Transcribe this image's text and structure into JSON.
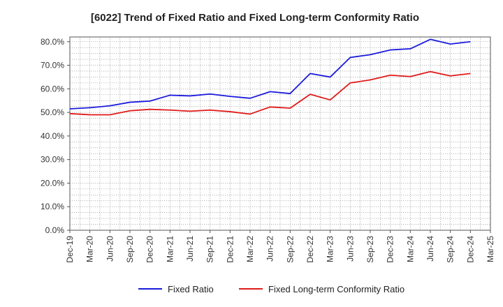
{
  "chart_data": {
    "type": "line",
    "title": "[6022]  Trend of Fixed Ratio and Fixed Long-term Conformity Ratio",
    "xlabel": "",
    "ylabel": "",
    "ylim": [
      0,
      82
    ],
    "y_ticks": [
      "0.0%",
      "10.0%",
      "20.0%",
      "30.0%",
      "40.0%",
      "50.0%",
      "60.0%",
      "70.0%",
      "80.0%"
    ],
    "y_tick_values": [
      0,
      10,
      20,
      30,
      40,
      50,
      60,
      70,
      80
    ],
    "categories": [
      "Dec-19",
      "Mar-20",
      "Jun-20",
      "Sep-20",
      "Dec-20",
      "Mar-21",
      "Jun-21",
      "Sep-21",
      "Dec-21",
      "Mar-22",
      "Jun-22",
      "Sep-22",
      "Dec-22",
      "Mar-23",
      "Jun-23",
      "Sep-23",
      "Dec-23",
      "Mar-24",
      "Jun-24",
      "Sep-24",
      "Dec-24",
      "Mar-25"
    ],
    "grid": true,
    "legend_position": "bottom",
    "series": [
      {
        "name": "Fixed Ratio",
        "color": "#1a1adc",
        "values": [
          51.5,
          52.0,
          52.8,
          54.3,
          54.8,
          57.3,
          57.0,
          57.8,
          56.8,
          56.0,
          58.8,
          58.0,
          66.5,
          65.0,
          73.3,
          74.5,
          76.5,
          77.0,
          81.0,
          79.0,
          80.0,
          null
        ]
      },
      {
        "name": "Fixed Long-term Conformity Ratio",
        "color": "#e01a1a",
        "values": [
          49.5,
          49.0,
          49.0,
          50.7,
          51.3,
          51.0,
          50.5,
          51.0,
          50.3,
          49.3,
          52.3,
          51.8,
          57.7,
          55.3,
          62.5,
          63.8,
          65.8,
          65.2,
          67.3,
          65.5,
          66.5,
          null
        ]
      }
    ]
  }
}
